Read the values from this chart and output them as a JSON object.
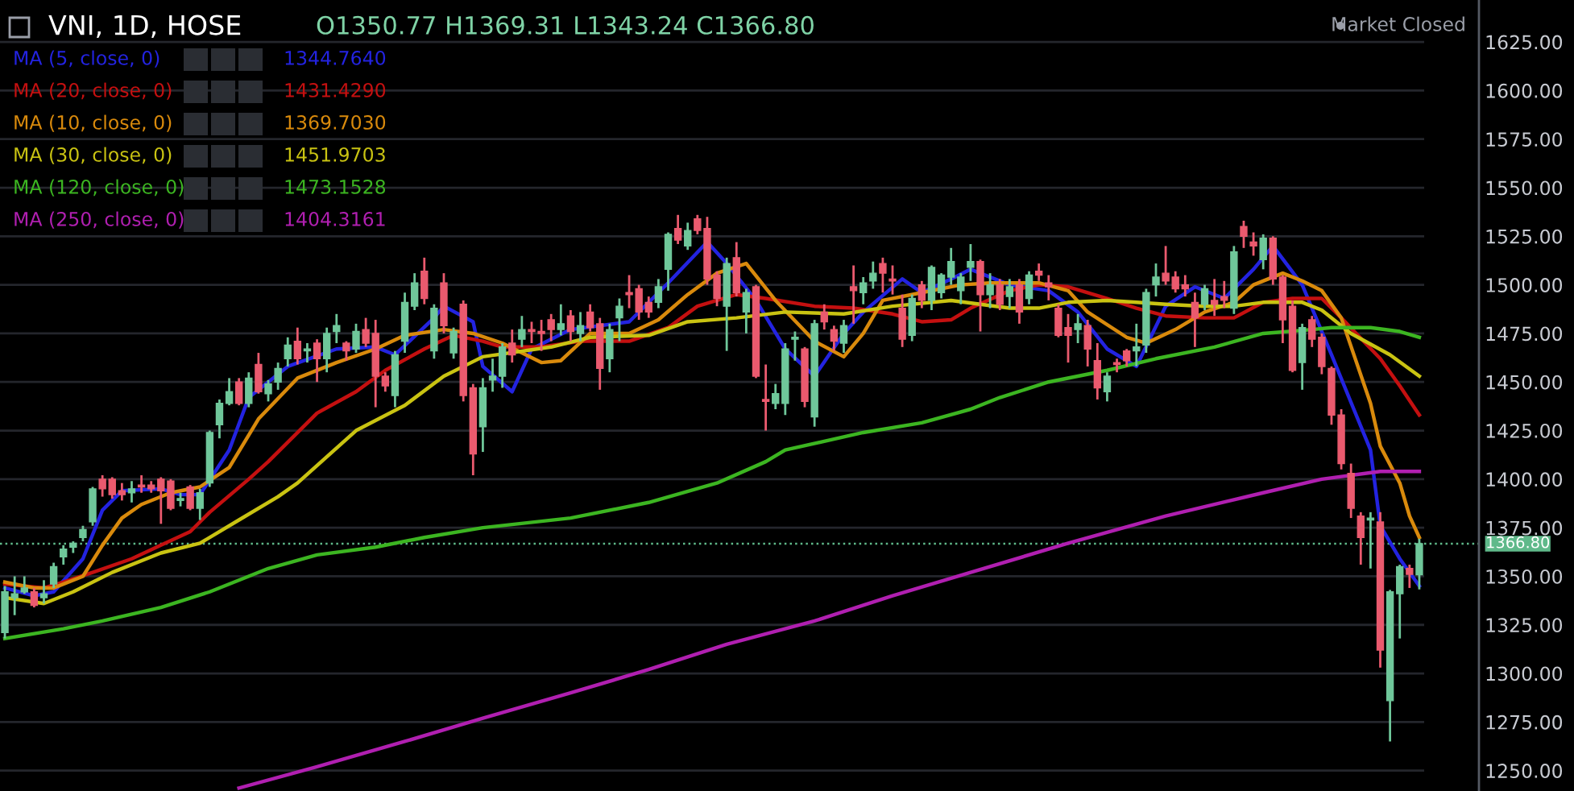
{
  "chart_data": {
    "type": "candlestick",
    "title": "VNI, 1D, HOSE",
    "annotations": [
      "O1350.77 H1369.31 L1343.24 C1366.80",
      "Market Closed",
      "1344.7640",
      "1431.4290",
      "1369.7030",
      "1451.9703",
      "1473.1528",
      "1404.3161"
    ],
    "categories": [
      null,
      null,
      null,
      null,
      null,
      null,
      null,
      null,
      null,
      null,
      null,
      null,
      null,
      null,
      null,
      null,
      null,
      null,
      null,
      null,
      null,
      null,
      null,
      null,
      null,
      null,
      null,
      null,
      null,
      null,
      null,
      null,
      null,
      null,
      null,
      null,
      null,
      null,
      null,
      null,
      null,
      null,
      null,
      null,
      null,
      null,
      null,
      null,
      null,
      null,
      null,
      null,
      null,
      null,
      null,
      null,
      null,
      null,
      null,
      null,
      null,
      null,
      null,
      null,
      null,
      null,
      null,
      null,
      null,
      null,
      null,
      null,
      null,
      null,
      null,
      null,
      null,
      null,
      null,
      null,
      null,
      null,
      null,
      null,
      null,
      null,
      null,
      null,
      null,
      null,
      null,
      null,
      null,
      null,
      null,
      null,
      null,
      null,
      null,
      null,
      null,
      null,
      null,
      null,
      null,
      null,
      null,
      null,
      null,
      null,
      null,
      null,
      null,
      null,
      null,
      null,
      null,
      null,
      null,
      null,
      null,
      null,
      null,
      null,
      null,
      null,
      null,
      null,
      null,
      null,
      null,
      null,
      null,
      null,
      null,
      null,
      null,
      null,
      null,
      null,
      null,
      null,
      null,
      null,
      null,
      null
    ],
    "ohlc": [
      [
        1321,
        1345,
        1318,
        1342
      ],
      [
        1339,
        1350,
        1330,
        1341
      ],
      [
        1342,
        1350,
        1341,
        1344
      ],
      [
        1342,
        1344,
        1334,
        1335
      ],
      [
        1339,
        1348,
        1336,
        1341
      ],
      [
        1346,
        1357,
        1344,
        1355
      ],
      [
        1360,
        1366,
        1356,
        1364
      ],
      [
        1365,
        1368,
        1362,
        1367
      ],
      [
        1370,
        1376,
        1368,
        1374
      ],
      [
        1378,
        1396,
        1376,
        1395
      ],
      [
        1400,
        1402,
        1391,
        1395
      ],
      [
        1400,
        1401,
        1390,
        1392
      ],
      [
        1394,
        1398,
        1389,
        1392
      ],
      [
        1393,
        1399,
        1388,
        1395
      ],
      [
        1397,
        1402,
        1393,
        1396
      ],
      [
        1397,
        1399,
        1393,
        1395
      ],
      [
        1400,
        1401,
        1377,
        1394
      ],
      [
        1399,
        1400,
        1384,
        1385
      ],
      [
        1389,
        1393,
        1386,
        1390
      ],
      [
        1396,
        1397,
        1384,
        1385
      ],
      [
        1385,
        1395,
        1379,
        1393
      ],
      [
        1398,
        1425,
        1396,
        1424
      ],
      [
        1428,
        1441,
        1421,
        1439
      ],
      [
        1439,
        1452,
        1438,
        1445
      ],
      [
        1450,
        1452,
        1438,
        1439
      ],
      [
        1439,
        1455,
        1437,
        1452
      ],
      [
        1459,
        1465,
        1444,
        1445
      ],
      [
        1444,
        1451,
        1440,
        1449
      ],
      [
        1450,
        1460,
        1446,
        1457
      ],
      [
        1462,
        1473,
        1458,
        1469
      ],
      [
        1471,
        1478,
        1459,
        1462
      ],
      [
        1466,
        1470,
        1460,
        1467
      ],
      [
        1470,
        1472,
        1450,
        1462
      ],
      [
        1462,
        1478,
        1455,
        1475
      ],
      [
        1476,
        1485,
        1470,
        1479
      ],
      [
        1470,
        1471,
        1461,
        1466
      ],
      [
        1467,
        1480,
        1465,
        1476
      ],
      [
        1477,
        1483,
        1468,
        1470
      ],
      [
        1475,
        1482,
        1437,
        1453
      ],
      [
        1453,
        1455,
        1445,
        1448
      ],
      [
        1443,
        1466,
        1437,
        1464
      ],
      [
        1471,
        1496,
        1465,
        1491
      ],
      [
        1489,
        1506,
        1487,
        1501
      ],
      [
        1507,
        1514,
        1490,
        1493
      ],
      [
        1466,
        1490,
        1462,
        1488
      ],
      [
        1501,
        1506,
        1475,
        1479
      ],
      [
        1465,
        1478,
        1462,
        1476
      ],
      [
        1490,
        1492,
        1440,
        1443
      ],
      [
        1447,
        1449,
        1402,
        1413
      ],
      [
        1427,
        1452,
        1414,
        1447
      ],
      [
        1451,
        1462,
        1445,
        1453
      ],
      [
        1453,
        1470,
        1447,
        1468
      ],
      [
        1470,
        1477,
        1460,
        1464
      ],
      [
        1472,
        1484,
        1468,
        1477
      ],
      [
        1477,
        1481,
        1470,
        1476
      ],
      [
        1476,
        1482,
        1466,
        1475
      ],
      [
        1482,
        1485,
        1471,
        1477
      ],
      [
        1477,
        1490,
        1474,
        1480
      ],
      [
        1484,
        1487,
        1471,
        1476
      ],
      [
        1475,
        1486,
        1471,
        1479
      ],
      [
        1486,
        1490,
        1476,
        1478
      ],
      [
        1480,
        1483,
        1446,
        1457
      ],
      [
        1462,
        1480,
        1455,
        1477
      ],
      [
        1483,
        1493,
        1471,
        1489
      ],
      [
        1496,
        1505,
        1488,
        1495
      ],
      [
        1498,
        1500,
        1482,
        1486
      ],
      [
        1491,
        1494,
        1483,
        1486
      ],
      [
        1491,
        1503,
        1488,
        1499
      ],
      [
        1508,
        1527,
        1497,
        1526
      ],
      [
        1529,
        1536,
        1521,
        1523
      ],
      [
        1520,
        1532,
        1518,
        1528
      ],
      [
        1534,
        1536,
        1526,
        1528
      ],
      [
        1529,
        1535,
        1500,
        1503
      ],
      [
        1505,
        1507,
        1489,
        1493
      ],
      [
        1489,
        1514,
        1466,
        1511
      ],
      [
        1514,
        1522,
        1494,
        1496
      ],
      [
        1486,
        1498,
        1475,
        1496
      ],
      [
        1499,
        1500,
        1452,
        1453
      ],
      [
        1441,
        1459,
        1425,
        1440
      ],
      [
        1439,
        1449,
        1436,
        1444
      ],
      [
        1439,
        1470,
        1433,
        1467
      ],
      [
        1472,
        1476,
        1461,
        1473
      ],
      [
        1467,
        1468,
        1437,
        1440
      ],
      [
        1432,
        1482,
        1427,
        1480
      ],
      [
        1486,
        1490,
        1477,
        1481
      ],
      [
        1477,
        1479,
        1466,
        1471
      ],
      [
        1470,
        1482,
        1465,
        1479
      ],
      [
        1499,
        1510,
        1480,
        1497
      ],
      [
        1496,
        1504,
        1490,
        1501
      ],
      [
        1502,
        1512,
        1498,
        1506
      ],
      [
        1511,
        1514,
        1496,
        1506
      ],
      [
        1503,
        1510,
        1495,
        1502
      ],
      [
        1488,
        1495,
        1468,
        1472
      ],
      [
        1474,
        1495,
        1471,
        1493
      ],
      [
        1500,
        1502,
        1488,
        1492
      ],
      [
        1492,
        1510,
        1487,
        1509
      ],
      [
        1496,
        1506,
        1493,
        1505
      ],
      [
        1504,
        1519,
        1500,
        1512
      ],
      [
        1497,
        1506,
        1490,
        1504
      ],
      [
        1509,
        1521,
        1502,
        1512
      ],
      [
        1512,
        1513,
        1476,
        1495
      ],
      [
        1495,
        1506,
        1488,
        1500
      ],
      [
        1500,
        1503,
        1487,
        1490
      ],
      [
        1494,
        1503,
        1488,
        1499
      ],
      [
        1500,
        1503,
        1480,
        1486
      ],
      [
        1493,
        1507,
        1490,
        1505
      ],
      [
        1507,
        1511,
        1502,
        1505
      ],
      [
        1501,
        1505,
        1492,
        1499
      ],
      [
        1488,
        1490,
        1473,
        1474
      ],
      [
        1478,
        1485,
        1460,
        1474
      ],
      [
        1477,
        1485,
        1470,
        1480
      ],
      [
        1479,
        1482,
        1458,
        1467
      ],
      [
        1461,
        1470,
        1441,
        1447
      ],
      [
        1445,
        1455,
        1440,
        1453
      ],
      [
        1460,
        1462,
        1455,
        1459
      ],
      [
        1466,
        1467,
        1458,
        1461
      ],
      [
        1466,
        1480,
        1458,
        1468
      ],
      [
        1469,
        1498,
        1465,
        1496
      ],
      [
        1500,
        1511,
        1494,
        1504
      ],
      [
        1506,
        1520,
        1500,
        1502
      ],
      [
        1504,
        1507,
        1496,
        1498
      ],
      [
        1500,
        1505,
        1494,
        1498
      ],
      [
        1491,
        1496,
        1468,
        1483
      ],
      [
        1490,
        1500,
        1487,
        1498
      ],
      [
        1492,
        1503,
        1484,
        1490
      ],
      [
        1494,
        1502,
        1488,
        1492
      ],
      [
        1488,
        1520,
        1485,
        1517
      ],
      [
        1530,
        1533,
        1519,
        1525
      ],
      [
        1522,
        1527,
        1515,
        1520
      ],
      [
        1513,
        1526,
        1508,
        1524
      ],
      [
        1524,
        1525,
        1500,
        1503
      ],
      [
        1504,
        1505,
        1470,
        1482
      ],
      [
        1489,
        1492,
        1455,
        1456
      ],
      [
        1460,
        1480,
        1446,
        1478
      ],
      [
        1482,
        1484,
        1468,
        1472
      ],
      [
        1473,
        1475,
        1454,
        1458
      ],
      [
        1457,
        1458,
        1428,
        1433
      ],
      [
        1433,
        1436,
        1405,
        1408
      ],
      [
        1403,
        1408,
        1380,
        1385
      ],
      [
        1381,
        1383,
        1356,
        1370
      ],
      [
        1379,
        1383,
        1354,
        1380
      ],
      [
        1378,
        1383,
        1303,
        1312
      ],
      [
        1286,
        1343,
        1265,
        1342
      ],
      [
        1341,
        1356,
        1318,
        1355
      ],
      [
        1354,
        1356,
        1344,
        1351
      ],
      [
        1350.77,
        1369.31,
        1343.24,
        1366.8
      ]
    ],
    "series": [
      {
        "name": "MA (5, close, 0)",
        "type": "line",
        "color": "#2323e0",
        "values": [
          1344,
          null,
          null,
          1340,
          null,
          1342,
          null,
          null,
          1359,
          null,
          1384,
          null,
          1394,
          null,
          null,
          null,
          1395,
          null,
          1392,
          null,
          1392,
          null,
          null,
          1415,
          null,
          1442,
          null,
          null,
          null,
          1458,
          null,
          null,
          null,
          null,
          1467,
          null,
          null,
          null,
          1468,
          null,
          1464,
          null,
          null,
          null,
          1483,
          1489,
          null,
          null,
          1481,
          1458,
          null,
          null,
          1445,
          null,
          1467,
          null,
          null,
          null,
          1477,
          null,
          null,
          null,
          null,
          null,
          1481,
          null,
          null,
          null,
          1501,
          null,
          null,
          null,
          1522,
          null,
          1511,
          null,
          null,
          1492,
          null,
          null,
          1467,
          null,
          null,
          1453,
          null,
          null,
          1475,
          null,
          1486,
          null,
          null,
          null,
          1503,
          null,
          1496,
          null,
          null,
          1503,
          null,
          1508,
          null,
          null,
          null,
          1500,
          null,
          null,
          null,
          1497,
          null,
          null,
          1486,
          null,
          null,
          1467,
          null,
          null,
          1458,
          null,
          null,
          1489,
          null,
          null,
          1499,
          null,
          null,
          1493,
          null,
          null,
          1508,
          null,
          1520,
          null,
          null,
          1500,
          null,
          null,
          1464,
          null,
          null,
          null,
          1415,
          1376,
          null,
          1359,
          null,
          1345
        ]
      },
      {
        "name": "MA (20, close, 0)",
        "type": "line",
        "color": "#c41010",
        "values": [
          1346,
          null,
          null,
          null,
          1344,
          null,
          1347,
          null,
          null,
          1352,
          null,
          null,
          null,
          1359,
          null,
          null,
          1366,
          null,
          null,
          1373,
          null,
          1383,
          null,
          null,
          null,
          1400,
          null,
          1409,
          null,
          null,
          null,
          null,
          1434,
          null,
          null,
          null,
          1445,
          null,
          null,
          1456,
          null,
          null,
          null,
          1467,
          null,
          null,
          1474,
          null,
          null,
          1471,
          null,
          1468,
          null,
          null,
          null,
          1468,
          null,
          null,
          null,
          1471,
          null,
          null,
          null,
          null,
          1471,
          null,
          null,
          null,
          1478,
          null,
          null,
          1489,
          null,
          null,
          null,
          1495,
          null,
          null,
          1493,
          null,
          null,
          null,
          null,
          1489,
          null,
          null,
          null,
          1488,
          null,
          null,
          null,
          1485,
          null,
          null,
          1481,
          null,
          null,
          1482,
          null,
          1488,
          null,
          null,
          null,
          1497,
          null,
          null,
          1500,
          null,
          null,
          1499,
          null,
          null,
          null,
          1493,
          null,
          null,
          1488,
          null,
          null,
          1484,
          null,
          null,
          null,
          1483,
          null,
          null,
          1483,
          null,
          null,
          1491,
          null,
          null,
          1493,
          null,
          null,
          1493,
          null,
          1483,
          null,
          null,
          null,
          1462,
          null,
          1448,
          null,
          1433
        ]
      },
      {
        "name": "MA (10, close, 0)",
        "type": "line",
        "color": "#d98a0c",
        "values": [
          1347,
          null,
          null,
          1344,
          null,
          1344,
          null,
          null,
          1350,
          null,
          1366,
          null,
          1380,
          null,
          1387,
          null,
          null,
          1393,
          null,
          null,
          1396,
          null,
          null,
          1406,
          null,
          null,
          1431,
          null,
          null,
          null,
          1452,
          null,
          null,
          null,
          1460,
          null,
          null,
          null,
          1467,
          null,
          null,
          1474,
          null,
          null,
          null,
          1477,
          null,
          null,
          1475,
          null,
          null,
          1470,
          null,
          null,
          null,
          1460,
          null,
          1461,
          null,
          null,
          1475,
          null,
          null,
          null,
          1475,
          null,
          null,
          1482,
          null,
          null,
          1495,
          null,
          null,
          1506,
          null,
          null,
          1511,
          null,
          null,
          1492,
          null,
          null,
          null,
          1471,
          null,
          null,
          1463,
          null,
          1475,
          null,
          1492,
          null,
          null,
          null,
          1496,
          null,
          null,
          null,
          1500,
          null,
          null,
          1501,
          null,
          null,
          null,
          null,
          1501,
          null,
          null,
          1497,
          null,
          1486,
          null,
          null,
          null,
          1473,
          null,
          1470,
          null,
          null,
          1477,
          null,
          null,
          1486,
          null,
          null,
          1491,
          null,
          1500,
          null,
          null,
          1506,
          null,
          1502,
          null,
          1497,
          null,
          1483,
          null,
          null,
          1439,
          1417,
          null,
          1398,
          1381,
          1370
        ]
      },
      {
        "name": "MA (30, close, 0)",
        "type": "line",
        "color": "#c9c312",
        "values": [
          1339,
          null,
          null,
          null,
          1336,
          null,
          null,
          1342,
          null,
          null,
          null,
          1352,
          null,
          null,
          null,
          null,
          1362,
          null,
          null,
          null,
          1367,
          null,
          null,
          null,
          1379,
          null,
          null,
          null,
          1391,
          null,
          1398,
          null,
          null,
          null,
          null,
          null,
          1425,
          null,
          null,
          null,
          null,
          1438,
          null,
          null,
          null,
          1453,
          null,
          null,
          null,
          1463,
          null,
          null,
          null,
          null,
          null,
          null,
          1468,
          null,
          null,
          null,
          1473,
          null,
          null,
          null,
          null,
          null,
          1474,
          null,
          null,
          null,
          1481,
          null,
          null,
          null,
          null,
          1483,
          null,
          null,
          null,
          null,
          1486,
          null,
          null,
          null,
          null,
          null,
          1485,
          null,
          null,
          null,
          null,
          1489,
          null,
          null,
          null,
          null,
          null,
          1492,
          null,
          null,
          null,
          null,
          null,
          1488,
          null,
          null,
          1488,
          null,
          null,
          1491,
          null,
          null,
          null,
          1492,
          null,
          null,
          1491,
          null,
          null,
          1490,
          null,
          null,
          null,
          1489,
          null,
          null,
          1489,
          null,
          null,
          1491,
          null,
          null,
          null,
          1491,
          null,
          1487,
          null,
          null,
          1475,
          null,
          null,
          null,
          1464,
          null,
          null,
          1453
        ]
      },
      {
        "name": "MA (120, close, 0)",
        "type": "line",
        "color": "#3cb521",
        "values": [
          1318,
          null,
          null,
          null,
          null,
          null,
          1323,
          null,
          null,
          null,
          1327,
          null,
          null,
          null,
          null,
          null,
          1334,
          null,
          null,
          null,
          null,
          1342,
          null,
          null,
          null,
          null,
          null,
          1354,
          null,
          null,
          null,
          null,
          1361,
          null,
          null,
          null,
          null,
          null,
          1365,
          null,
          null,
          null,
          null,
          1370,
          null,
          null,
          null,
          null,
          null,
          1375,
          null,
          null,
          null,
          null,
          null,
          null,
          null,
          null,
          1380,
          null,
          null,
          null,
          null,
          null,
          null,
          null,
          1388,
          null,
          null,
          null,
          null,
          null,
          null,
          1398,
          null,
          null,
          null,
          null,
          1409,
          null,
          1415,
          null,
          null,
          null,
          null,
          null,
          null,
          null,
          1424,
          null,
          null,
          null,
          null,
          null,
          1429,
          null,
          null,
          null,
          null,
          1436,
          null,
          null,
          1442,
          null,
          null,
          null,
          null,
          1450,
          null,
          null,
          null,
          null,
          null,
          1456,
          null,
          null,
          null,
          null,
          1462,
          null,
          null,
          null,
          null,
          null,
          1468,
          null,
          null,
          null,
          null,
          1475,
          null,
          null,
          null,
          null,
          1477,
          null,
          1478,
          null,
          null,
          null,
          1478,
          null,
          null,
          1476,
          null,
          1473
        ]
      },
      {
        "name": "MA (250, close, 0)",
        "type": "line",
        "color": "#b01fb0",
        "values": [
          null,
          null,
          null,
          null,
          null,
          null,
          null,
          null,
          null,
          null,
          null,
          null,
          null,
          null,
          null,
          null,
          null,
          null,
          null,
          null,
          null,
          null,
          null,
          null,
          1241,
          null,
          null,
          null,
          null,
          null,
          null,
          null,
          1252,
          null,
          null,
          null,
          null,
          null,
          null,
          null,
          null,
          1265,
          null,
          null,
          null,
          null,
          null,
          null,
          null,
          1277,
          null,
          null,
          null,
          null,
          null,
          null,
          null,
          null,
          1290,
          null,
          null,
          null,
          null,
          null,
          null,
          null,
          1302,
          null,
          null,
          null,
          null,
          null,
          null,
          null,
          1315,
          null,
          null,
          null,
          null,
          null,
          null,
          null,
          null,
          1327,
          null,
          null,
          null,
          null,
          null,
          null,
          null,
          1340,
          null,
          null,
          null,
          null,
          null,
          null,
          null,
          1352,
          null,
          null,
          null,
          null,
          null,
          null,
          null,
          null,
          null,
          1367,
          null,
          null,
          null,
          null,
          null,
          null,
          null,
          null,
          null,
          1381,
          null,
          null,
          null,
          null,
          null,
          null,
          null,
          null,
          null,
          1393,
          null,
          null,
          null,
          null,
          null,
          1400,
          null,
          null,
          null,
          null,
          null,
          1404,
          null,
          null,
          null,
          1404
        ]
      }
    ],
    "ylim": [
      1239.5,
      1646.6
    ],
    "yticks": [
      {
        "value": 1250,
        "label": "1250.00"
      },
      {
        "value": 1275,
        "label": "1275.00"
      },
      {
        "value": 1300,
        "label": "1300.00"
      },
      {
        "value": 1325,
        "label": "1325.00"
      },
      {
        "value": 1350,
        "label": "1350.00"
      },
      {
        "value": 1375,
        "label": "1375.00"
      },
      {
        "value": 1400,
        "label": "1400.00"
      },
      {
        "value": 1425,
        "label": "1425.00"
      },
      {
        "value": 1450,
        "label": "1450.00"
      },
      {
        "value": 1475,
        "label": "1475.00"
      },
      {
        "value": 1500,
        "label": "1500.00"
      },
      {
        "value": 1525,
        "label": "1525.00"
      },
      {
        "value": 1550,
        "label": "1550.00"
      },
      {
        "value": 1575,
        "label": "1575.00"
      },
      {
        "value": 1600,
        "label": "1600.00"
      },
      {
        "value": 1625,
        "label": "1625.00"
      }
    ],
    "ref_lines": [
      {
        "axis": "y",
        "value": 1366.8,
        "label": "1366.80",
        "color": "#5fb98a",
        "line_style": "dotted"
      }
    ],
    "grid": "y",
    "legend": "top left",
    "tick_labels": "y",
    "marker": "none",
    "line_style": "solid"
  }
}
